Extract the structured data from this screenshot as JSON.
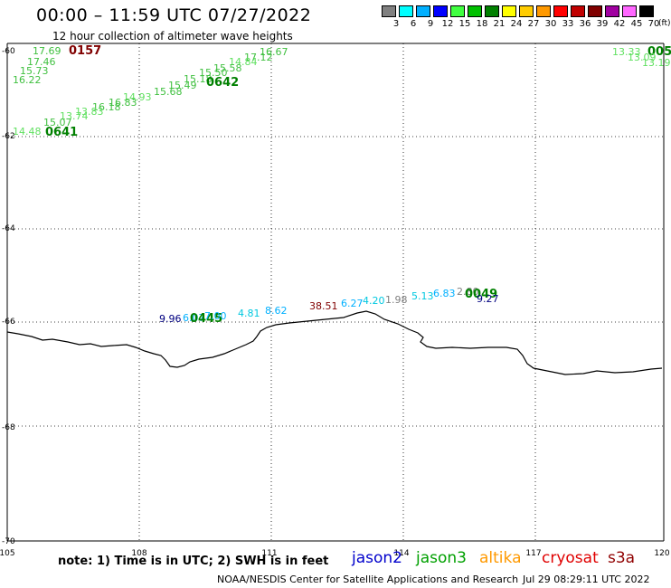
{
  "header": {
    "title": "00:00 – 11:59 UTC 07/27/2022",
    "subtitle": "12 hour collection of altimeter wave heights"
  },
  "legend": {
    "unit": "(ft)",
    "bins": [
      {
        "label": "3",
        "color": "#808080"
      },
      {
        "label": "6",
        "color": "#00ffff"
      },
      {
        "label": "9",
        "color": "#00b0ff"
      },
      {
        "label": "12",
        "color": "#0000ff"
      },
      {
        "label": "15",
        "color": "#40ff40"
      },
      {
        "label": "18",
        "color": "#00c000"
      },
      {
        "label": "21",
        "color": "#008000"
      },
      {
        "label": "24",
        "color": "#ffff00"
      },
      {
        "label": "27",
        "color": "#ffcc00"
      },
      {
        "label": "30",
        "color": "#ff9900"
      },
      {
        "label": "33",
        "color": "#ff0000"
      },
      {
        "label": "36",
        "color": "#c00000"
      },
      {
        "label": "39",
        "color": "#800000"
      },
      {
        "label": "42",
        "color": "#a000a0"
      },
      {
        "label": "45",
        "color": "#ff66ff"
      },
      {
        "label": "70",
        "color": "#000000"
      }
    ]
  },
  "axes": {
    "lon_labels": [
      "105",
      "108",
      "111",
      "114",
      "117",
      "120"
    ],
    "lat_labels": [
      "-60",
      "-62",
      "-64",
      "-66",
      "-68",
      "-70"
    ]
  },
  "observations": [
    {
      "text": "17.69",
      "color": "#40c040"
    },
    {
      "text": "0157",
      "color": "#800000"
    },
    {
      "text": "17.46",
      "color": "#40c040"
    },
    {
      "text": "15.73",
      "color": "#40c040"
    },
    {
      "text": "16.22",
      "color": "#40c040"
    },
    {
      "text": "16.67",
      "color": "#40c040"
    },
    {
      "text": "17.12",
      "color": "#40c040"
    },
    {
      "text": "14.84",
      "color": "#60e060"
    },
    {
      "text": "15.58",
      "color": "#40c040"
    },
    {
      "text": "15.50",
      "color": "#40c040"
    },
    {
      "text": "15.18",
      "color": "#40c040"
    },
    {
      "text": "0642",
      "color": "#008000"
    },
    {
      "text": "15.49",
      "color": "#40c040"
    },
    {
      "text": "15.68",
      "color": "#40c040"
    },
    {
      "text": "14.93",
      "color": "#60e060"
    },
    {
      "text": "16.83",
      "color": "#40c040"
    },
    {
      "text": "16.18",
      "color": "#40c040"
    },
    {
      "text": "13.83",
      "color": "#60e060"
    },
    {
      "text": "13.74",
      "color": "#60e060"
    },
    {
      "text": "15.07",
      "color": "#40c040"
    },
    {
      "text": "14.48",
      "color": "#60e060"
    },
    {
      "text": "0641",
      "color": "#008000"
    },
    {
      "text": "13.33",
      "color": "#60e060"
    },
    {
      "text": "005",
      "color": "#008000"
    },
    {
      "text": "13.09",
      "color": "#60e060"
    },
    {
      "text": "13.19",
      "color": "#60e060"
    },
    {
      "text": "9.96",
      "color": "#000080"
    },
    {
      "text": "6.07",
      "color": "#00b0ff"
    },
    {
      "text": "0445",
      "color": "#008000"
    },
    {
      "text": "7.00",
      "color": "#00b0ff"
    },
    {
      "text": "4.81",
      "color": "#00c8e0"
    },
    {
      "text": "8.62",
      "color": "#00b0ff"
    },
    {
      "text": "38.51",
      "color": "#800000"
    },
    {
      "text": "6.27",
      "color": "#00b0ff"
    },
    {
      "text": "4.20",
      "color": "#00c8e0"
    },
    {
      "text": "1.98",
      "color": "#808080"
    },
    {
      "text": "5.13",
      "color": "#00c8e0"
    },
    {
      "text": "6.83",
      "color": "#00b0ff"
    },
    {
      "text": "2.80",
      "color": "#808080"
    },
    {
      "text": "0049",
      "color": "#008000"
    },
    {
      "text": "9.27",
      "color": "#000080"
    }
  ],
  "footer": {
    "note": "note: 1) Time is in UTC; 2) SWH is in feet",
    "satellites": [
      {
        "name": "jason2",
        "color": "#0000cc"
      },
      {
        "name": "jason3",
        "color": "#00a000"
      },
      {
        "name": "altika",
        "color": "#ff9900"
      },
      {
        "name": "cryosat",
        "color": "#e00000"
      },
      {
        "name": "s3a",
        "color": "#900000"
      }
    ],
    "credit": "NOAA/NESDIS Center for Satellite Applications and Research",
    "generated": "Jul 29 08:29:11 UTC 2022"
  }
}
